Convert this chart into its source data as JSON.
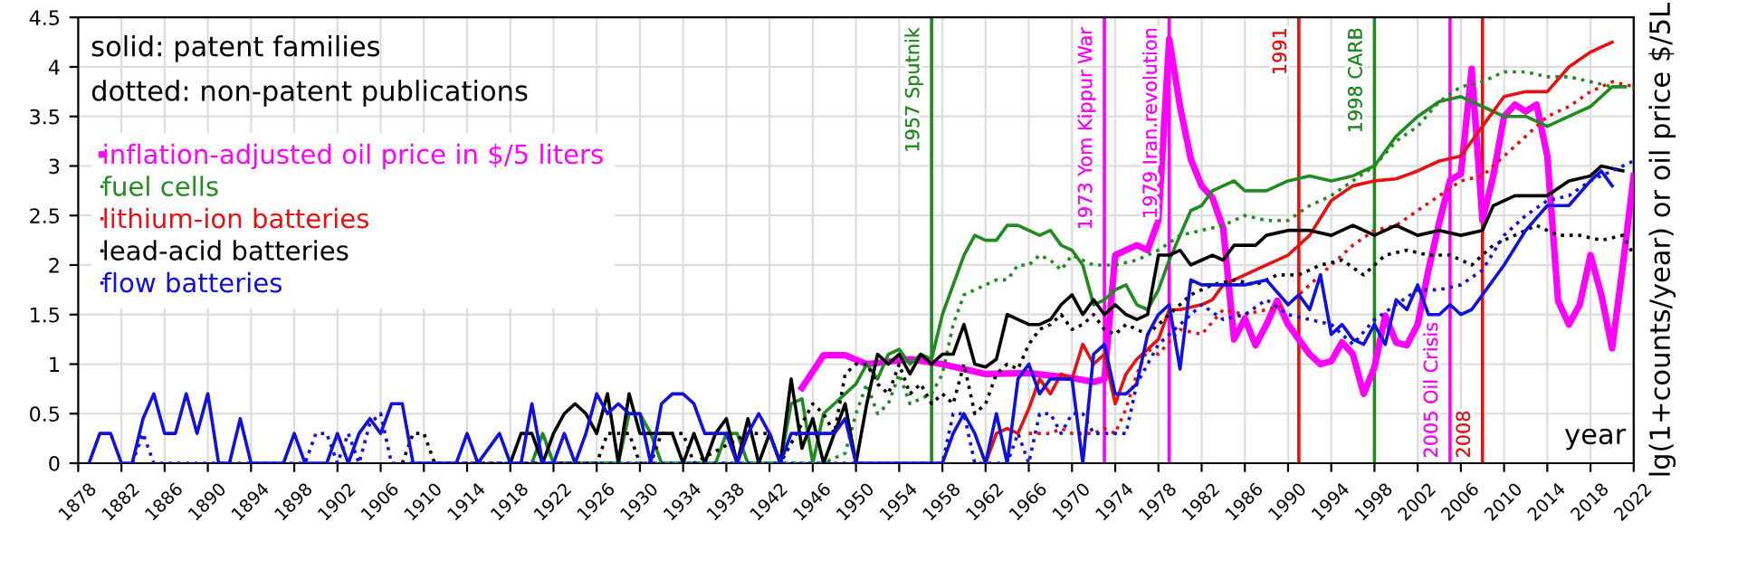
{
  "chart_data": {
    "type": "line",
    "xlabel": "year",
    "ylabel": "lg(1+counts/year) or oil price $/5L",
    "annotations": [
      "solid: patent families",
      "dotted: non-patent publications"
    ],
    "xlim": [
      1878,
      2022
    ],
    "xticks": [
      1878,
      1882,
      1886,
      1890,
      1894,
      1898,
      1902,
      1906,
      1910,
      1914,
      1918,
      1922,
      1926,
      1930,
      1934,
      1938,
      1942,
      1946,
      1950,
      1954,
      1958,
      1962,
      1966,
      1970,
      1974,
      1978,
      1982,
      1986,
      1990,
      1994,
      1998,
      2002,
      2006,
      2010,
      2014,
      2018,
      2022
    ],
    "ylim": [
      0,
      4.5
    ],
    "yticks": [
      0,
      0.5,
      1,
      1.5,
      2,
      2.5,
      3,
      3.5,
      4,
      4.5
    ],
    "grid": true,
    "legend": "top left",
    "marker": "none",
    "ref_lines": [
      {
        "axis": "x",
        "value": 1957,
        "label": "1957 Sputnik",
        "color": "#1e8c1e"
      },
      {
        "axis": "x",
        "value": 1973,
        "label": "1973 Yom Kippur War",
        "color": "#ff00ff"
      },
      {
        "axis": "x",
        "value": 1979,
        "label": "1979 Iran.revolution",
        "color": "#ff00ff"
      },
      {
        "axis": "x",
        "value": 1991,
        "label": "1991",
        "color": "#e81010"
      },
      {
        "axis": "x",
        "value": 1998,
        "label": "1998 CARB",
        "color": "#1e8c1e"
      },
      {
        "axis": "x",
        "value": 2005,
        "label": "2005 Oil Crisis",
        "color": "#ff00ff"
      },
      {
        "axis": "x",
        "value": 2008,
        "label": "2008",
        "color": "#e81010"
      }
    ],
    "series": [
      {
        "name": "inflation-adjusted oil price in $/5 liters",
        "color": "#ff00ff",
        "line_style": "solid",
        "x": [
          1945,
          1947,
          1949,
          1951,
          1955,
          1958,
          1962,
          1966,
          1970,
          1972,
          1973,
          1974,
          1975,
          1976,
          1977,
          1978,
          1979,
          1980,
          1981,
          1982,
          1983,
          1984,
          1985,
          1986,
          1987,
          1988,
          1989,
          1990,
          1991,
          1992,
          1993,
          1994,
          1995,
          1996,
          1997,
          1998,
          1999,
          2000,
          2001,
          2002,
          2003,
          2004,
          2005,
          2006,
          2007,
          2008,
          2009,
          2010,
          2011,
          2012,
          2013,
          2014,
          2015,
          2016,
          2017,
          2018,
          2019,
          2020,
          2021,
          2022
        ],
        "values": [
          0.76,
          1.09,
          1.09,
          1.0,
          1.05,
          1.0,
          0.9,
          0.91,
          0.86,
          0.82,
          0.85,
          2.1,
          2.15,
          2.2,
          2.15,
          2.45,
          4.28,
          3.6,
          3.07,
          2.8,
          2.68,
          2.37,
          1.25,
          1.46,
          1.19,
          1.4,
          1.64,
          1.4,
          1.25,
          1.1,
          1.0,
          1.03,
          1.22,
          1.1,
          0.7,
          0.97,
          1.49,
          1.22,
          1.19,
          1.4,
          1.95,
          2.43,
          2.86,
          2.92,
          3.98,
          2.45,
          2.9,
          3.5,
          3.62,
          3.55,
          3.62,
          3.1,
          1.64,
          1.4,
          1.6,
          2.1,
          1.7,
          1.16,
          2.0,
          2.9
        ]
      },
      {
        "name": "fuel cells",
        "color": "#1e8c1e",
        "line_style": "solid",
        "x": [
          1920,
          1921,
          1922,
          1928,
          1929,
          1930,
          1931,
          1932,
          1937,
          1938,
          1939,
          1940,
          1943,
          1944,
          1945,
          1946,
          1947,
          1948,
          1949,
          1950,
          1951,
          1952,
          1953,
          1954,
          1955,
          1956,
          1957,
          1958,
          1959,
          1960,
          1961,
          1962,
          1963,
          1964,
          1965,
          1966,
          1967,
          1968,
          1969,
          1970,
          1971,
          1972,
          1973,
          1974,
          1975,
          1976,
          1977,
          1978,
          1979,
          1980,
          1981,
          1982,
          1983,
          1984,
          1985,
          1986,
          1988,
          1990,
          1992,
          1994,
          1996,
          1998,
          2000,
          2002,
          2004,
          2006,
          2008,
          2010,
          2012,
          2014,
          2016,
          2018,
          2020,
          2021
        ],
        "values": [
          0,
          0.3,
          0,
          0,
          0.5,
          0.5,
          0.3,
          0,
          0,
          0.3,
          0.3,
          0,
          0,
          0.6,
          0.65,
          0,
          0.5,
          0.6,
          0.7,
          0.8,
          1.0,
          0.85,
          1.1,
          1.15,
          1.0,
          1.1,
          1.05,
          1.5,
          1.8,
          2.1,
          2.3,
          2.25,
          2.25,
          2.4,
          2.4,
          2.35,
          2.3,
          2.35,
          2.2,
          2.15,
          2.0,
          1.6,
          1.65,
          1.75,
          1.8,
          1.6,
          1.55,
          1.75,
          2.05,
          2.3,
          2.55,
          2.6,
          2.75,
          2.8,
          2.85,
          2.75,
          2.75,
          2.85,
          2.9,
          2.85,
          2.9,
          3.0,
          3.3,
          3.5,
          3.65,
          3.7,
          3.6,
          3.5,
          3.5,
          3.4,
          3.5,
          3.6,
          3.8,
          3.8
        ]
      },
      {
        "color": "#1e8c1e",
        "line_style": "dotted",
        "x": [
          1920,
          1921,
          1922,
          1947,
          1949,
          1950,
          1951,
          1952,
          1953,
          1954,
          1955,
          1956,
          1957,
          1958,
          1959,
          1960,
          1961,
          1962,
          1963,
          1964,
          1965,
          1966,
          1967,
          1968,
          1969,
          1970,
          1972,
          1974,
          1976,
          1978,
          1980,
          1982,
          1984,
          1986,
          1988,
          1990,
          1992,
          1994,
          1996,
          1998,
          2000,
          2002,
          2004,
          2006,
          2008,
          2010,
          2012,
          2014,
          2016,
          2018,
          2020,
          2022
        ],
        "values": [
          0,
          0.3,
          0,
          0,
          0.1,
          0.5,
          0.8,
          0.5,
          0.6,
          0.9,
          0.6,
          0.65,
          0.7,
          0.9,
          1.4,
          1.7,
          1.75,
          1.8,
          1.85,
          1.85,
          2.0,
          2.0,
          2.1,
          2.05,
          1.95,
          2.1,
          2.0,
          2.0,
          2.05,
          2.15,
          2.3,
          2.35,
          2.4,
          2.5,
          2.45,
          2.45,
          2.6,
          2.7,
          2.85,
          3.0,
          3.25,
          3.4,
          3.65,
          3.8,
          3.85,
          3.95,
          3.95,
          3.9,
          3.9,
          3.85,
          3.8,
          3.8
        ]
      },
      {
        "name": "lithium-ion batteries",
        "color": "#e81010",
        "line_style": "solid",
        "x": [
          1962,
          1963,
          1964,
          1965,
          1966,
          1967,
          1968,
          1969,
          1970,
          1971,
          1972,
          1973,
          1974,
          1975,
          1976,
          1977,
          1978,
          1979,
          1980,
          1982,
          1983,
          1984,
          1986,
          1988,
          1990,
          1992,
          1994,
          1996,
          1998,
          2000,
          2002,
          2004,
          2006,
          2008,
          2010,
          2012,
          2014,
          2016,
          2018,
          2020
        ],
        "values": [
          0,
          0.3,
          0.35,
          0.3,
          0.55,
          0.85,
          0.7,
          0.9,
          0.85,
          1.2,
          1.0,
          1.1,
          0.6,
          0.9,
          1.05,
          1.15,
          1.25,
          1.55,
          1.55,
          1.6,
          1.65,
          1.8,
          1.9,
          2.0,
          2.1,
          2.3,
          2.65,
          2.8,
          2.85,
          2.87,
          2.95,
          3.05,
          3.1,
          3.4,
          3.7,
          3.75,
          3.75,
          4.0,
          4.15,
          4.25
        ]
      },
      {
        "color": "#e81010",
        "line_style": "dotted",
        "x": [
          1966,
          1968,
          1969,
          1970,
          1971,
          1972,
          1973,
          1974,
          1975,
          1976,
          1977,
          1978,
          1980,
          1982,
          1984,
          1986,
          1988,
          1990,
          1992,
          1994,
          1996,
          1998,
          2000,
          2002,
          2004,
          2006,
          2008,
          2010,
          2012,
          2014,
          2016,
          2018,
          2020,
          2022
        ],
        "values": [
          0.3,
          0.3,
          0.35,
          0.3,
          0.3,
          0.3,
          0.35,
          0.3,
          0.55,
          0.9,
          1.15,
          1.1,
          1.35,
          1.3,
          1.55,
          1.5,
          1.55,
          1.6,
          1.8,
          2.0,
          2.2,
          2.35,
          2.4,
          2.55,
          2.7,
          2.85,
          2.9,
          3.1,
          3.3,
          3.5,
          3.6,
          3.75,
          3.85,
          3.8
        ]
      },
      {
        "name": "lead-acid batteries",
        "color": "#000000",
        "line_style": "solid",
        "x": [
          1918,
          1919,
          1920,
          1921,
          1922,
          1923,
          1924,
          1925,
          1926,
          1927,
          1928,
          1929,
          1930,
          1931,
          1932,
          1933,
          1934,
          1935,
          1936,
          1937,
          1938,
          1939,
          1940,
          1941,
          1942,
          1943,
          1944,
          1945,
          1946,
          1947,
          1948,
          1949,
          1950,
          1951,
          1952,
          1953,
          1954,
          1955,
          1956,
          1957,
          1958,
          1959,
          1960,
          1961,
          1962,
          1963,
          1964,
          1965,
          1966,
          1967,
          1968,
          1969,
          1970,
          1971,
          1972,
          1973,
          1974,
          1975,
          1976,
          1977,
          1978,
          1979,
          1980,
          1981,
          1982,
          1983,
          1984,
          1985,
          1987,
          1988,
          1990,
          1992,
          1994,
          1996,
          1998,
          2000,
          2002,
          2004,
          2006,
          2008,
          2009,
          2011,
          2014,
          2016,
          2018,
          2019,
          2021
        ],
        "values": [
          0,
          0.3,
          0.3,
          0,
          0.3,
          0.5,
          0.6,
          0.5,
          0.3,
          0.7,
          0,
          0.7,
          0.3,
          0.3,
          0.3,
          0.3,
          0,
          0.3,
          0,
          0.3,
          0.45,
          0,
          0.45,
          0,
          0.3,
          0,
          0.85,
          0.15,
          0.45,
          0,
          0.3,
          0.6,
          0,
          0.6,
          1.1,
          1.0,
          1.1,
          0.9,
          1.1,
          1.0,
          1.1,
          1.1,
          1.4,
          1.0,
          0.97,
          1.05,
          1.5,
          1.45,
          1.4,
          1.4,
          1.45,
          1.6,
          1.7,
          1.5,
          1.65,
          1.5,
          1.6,
          1.5,
          1.45,
          1.5,
          2.1,
          2.1,
          2.15,
          2.0,
          2.05,
          2.1,
          2.05,
          2.2,
          2.2,
          2.3,
          2.35,
          2.35,
          2.3,
          2.4,
          2.3,
          2.4,
          2.3,
          2.35,
          2.3,
          2.35,
          2.6,
          2.7,
          2.7,
          2.85,
          2.9,
          3.0,
          2.95
        ]
      },
      {
        "color": "#000000",
        "line_style": "dotted",
        "x": [
          1908,
          1909,
          1910,
          1911,
          1926,
          1927,
          1928,
          1929,
          1930,
          1931,
          1932,
          1933,
          1934,
          1935,
          1940,
          1942,
          1943,
          1946,
          1947,
          1948,
          1949,
          1950,
          1951,
          1952,
          1953,
          1954,
          1955,
          1956,
          1957,
          1958,
          1959,
          1960,
          1961,
          1962,
          1963,
          1964,
          1965,
          1966,
          1967,
          1968,
          1969,
          1970,
          1971,
          1972,
          1973,
          1974,
          1975,
          1977,
          1979,
          1981,
          1983,
          1985,
          1987,
          1989,
          1991,
          1993,
          1995,
          1997,
          1999,
          2001,
          2003,
          2005,
          2007,
          2009,
          2011,
          2013,
          2015,
          2017,
          2019,
          2021,
          2022
        ],
        "values": [
          0,
          0.3,
          0.3,
          0,
          0,
          0.3,
          0.3,
          0.3,
          0,
          0,
          0.3,
          0.3,
          0.3,
          0,
          0.3,
          0.3,
          0,
          0.6,
          0.5,
          0.3,
          0.9,
          1.0,
          1.0,
          0.8,
          0.7,
          1.0,
          0.7,
          0.8,
          0.6,
          0.7,
          0.6,
          1.0,
          0.5,
          0.6,
          0.9,
          1.0,
          0.95,
          1.2,
          1.35,
          1.4,
          1.5,
          1.35,
          1.4,
          1.5,
          1.35,
          1.3,
          1.4,
          1.3,
          1.5,
          1.7,
          1.8,
          1.85,
          1.8,
          1.9,
          1.9,
          2.0,
          2.05,
          1.9,
          2.1,
          2.15,
          2.1,
          2.1,
          2.0,
          2.2,
          2.3,
          2.4,
          2.3,
          2.3,
          2.25,
          2.3,
          2.1
        ]
      },
      {
        "name": "flow batteries",
        "color": "#1010e0",
        "line_style": "solid",
        "x": [
          1879,
          1880,
          1881,
          1882,
          1883,
          1884,
          1885,
          1886,
          1887,
          1888,
          1889,
          1890,
          1891,
          1892,
          1893,
          1894,
          1897,
          1898,
          1899,
          1901,
          1902,
          1903,
          1904,
          1905,
          1906,
          1907,
          1908,
          1909,
          1913,
          1914,
          1915,
          1917,
          1918,
          1919,
          1920,
          1921,
          1922,
          1923,
          1924,
          1925,
          1926,
          1927,
          1928,
          1929,
          1930,
          1931,
          1932,
          1933,
          1934,
          1935,
          1936,
          1937,
          1938,
          1939,
          1940,
          1941,
          1942,
          1943,
          1944,
          1945,
          1946,
          1947,
          1948,
          1949,
          1950,
          1958,
          1959,
          1960,
          1961,
          1962,
          1963,
          1964,
          1965,
          1966,
          1967,
          1968,
          1969,
          1970,
          1971,
          1972,
          1973,
          1974,
          1975,
          1976,
          1977,
          1978,
          1979,
          1980,
          1981,
          1982,
          1984,
          1986,
          1988,
          1990,
          1991,
          1992,
          1993,
          1994,
          1995,
          1996,
          1997,
          1998,
          1999,
          2000,
          2001,
          2002,
          2003,
          2004,
          2005,
          2006,
          2007,
          2008,
          2010,
          2012,
          2014,
          2016,
          2018,
          2019,
          2020
        ],
        "values": [
          0,
          0.3,
          0.3,
          0,
          0,
          0.45,
          0.7,
          0.3,
          0.3,
          0.7,
          0.3,
          0.7,
          0,
          0,
          0.45,
          0,
          0,
          0.3,
          0,
          0,
          0.3,
          0,
          0.3,
          0.45,
          0.3,
          0.6,
          0.6,
          0,
          0,
          0.3,
          0,
          0.3,
          0,
          0,
          0.6,
          0,
          0,
          0.3,
          0,
          0.3,
          0.7,
          0.5,
          0.6,
          0.5,
          0.5,
          0,
          0.6,
          0.7,
          0.7,
          0.6,
          0.3,
          0.3,
          0.3,
          0,
          0.3,
          0.5,
          0.3,
          0,
          0.3,
          0.3,
          0.3,
          0.3,
          0.3,
          0.45,
          0,
          0,
          0.3,
          0.5,
          0.3,
          0,
          0.5,
          0,
          0.85,
          1.0,
          0.7,
          0.85,
          0.85,
          0.85,
          0,
          1.1,
          1.2,
          0.7,
          0.7,
          0.8,
          1.3,
          1.5,
          1.6,
          0.95,
          1.85,
          1.8,
          1.8,
          1.8,
          1.85,
          1.6,
          1.7,
          1.55,
          1.9,
          1.3,
          1.4,
          1.25,
          1.2,
          1.4,
          1.2,
          1.65,
          1.55,
          1.8,
          1.5,
          1.5,
          1.6,
          1.5,
          1.55,
          1.7,
          2.0,
          2.35,
          2.6,
          2.6,
          2.85,
          2.95,
          2.8
        ]
      },
      {
        "color": "#1010e0",
        "line_style": "dotted",
        "x": [
          1883,
          1884,
          1885,
          1899,
          1900,
          1901,
          1902,
          1903,
          1904,
          1905,
          1906,
          1907,
          1957,
          1958,
          1959,
          1960,
          1961,
          1964,
          1965,
          1966,
          1967,
          1968,
          1969,
          1970,
          1971,
          1972,
          1973,
          1974,
          1975,
          1976,
          1977,
          1978,
          1980,
          1982,
          1984,
          1986,
          1988,
          1990,
          1992,
          1994,
          1996,
          1998,
          2000,
          2002,
          2004,
          2006,
          2008,
          2010,
          2012,
          2014,
          2016,
          2018,
          2020,
          2022
        ],
        "values": [
          0,
          0.3,
          0,
          0,
          0.3,
          0.3,
          0,
          0.3,
          0,
          0.4,
          0.5,
          0,
          0,
          0,
          0.5,
          0.5,
          0,
          0,
          0.3,
          0,
          0.5,
          0.5,
          0.3,
          0.5,
          0.5,
          0.3,
          0.3,
          0.3,
          0.3,
          0.8,
          1.0,
          1.2,
          1.4,
          1.6,
          1.45,
          1.5,
          1.65,
          1.5,
          1.45,
          1.4,
          1.2,
          1.45,
          1.6,
          1.75,
          1.75,
          1.8,
          1.95,
          2.3,
          2.5,
          2.65,
          2.7,
          2.85,
          2.95,
          3.05
        ]
      }
    ]
  }
}
